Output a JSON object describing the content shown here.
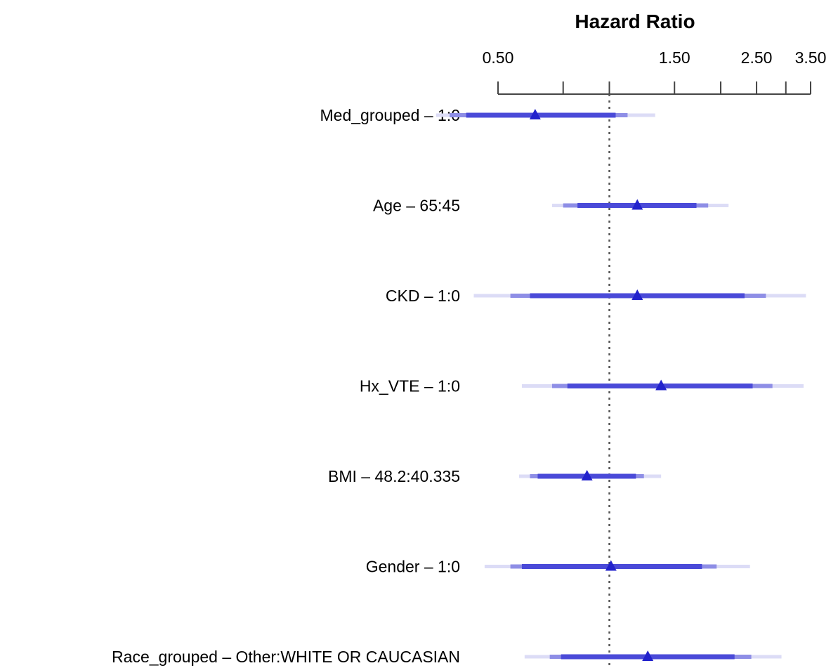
{
  "chart_data": {
    "type": "forest",
    "title": "Hazard Ratio",
    "x_axis": {
      "ticks": [
        0.5,
        0.75,
        1.0,
        1.5,
        2.0,
        2.5,
        3.0,
        3.5
      ],
      "tick_labels": [
        "0.50",
        "",
        "",
        "1.50",
        "",
        "2.50",
        "",
        "3.50"
      ],
      "scale": "log",
      "position": "top"
    },
    "reference_line": 1.0,
    "colors": {
      "mark": "#2222cc",
      "ci_narrow": "#4a4ad8",
      "ci_mid": "#8e8ee6",
      "ci_wide": "#dcdcf6",
      "reference": "#555555",
      "axis": "#444444"
    },
    "rows": [
      {
        "label": "Med_grouped – 1:0",
        "hr": 0.63,
        "ci_inner": [
          0.41,
          1.04
        ],
        "ci_mid": [
          0.37,
          1.12
        ],
        "ci_wide": [
          0.34,
          1.33
        ]
      },
      {
        "label": "Age – 65:45",
        "hr": 1.19,
        "ci_inner": [
          0.82,
          1.72
        ],
        "ci_mid": [
          0.75,
          1.85
        ],
        "ci_wide": [
          0.7,
          2.1
        ]
      },
      {
        "label": "CKD – 1:0",
        "hr": 1.19,
        "ci_inner": [
          0.61,
          2.32
        ],
        "ci_mid": [
          0.54,
          2.65
        ],
        "ci_wide": [
          0.43,
          3.4
        ]
      },
      {
        "label": "Hx_VTE – 1:0",
        "hr": 1.38,
        "ci_inner": [
          0.77,
          2.44
        ],
        "ci_mid": [
          0.7,
          2.76
        ],
        "ci_wide": [
          0.58,
          3.35
        ]
      },
      {
        "label": "BMI – 48.2:40.335",
        "hr": 0.87,
        "ci_inner": [
          0.64,
          1.18
        ],
        "ci_mid": [
          0.61,
          1.24
        ],
        "ci_wide": [
          0.57,
          1.38
        ]
      },
      {
        "label": "Gender – 1:0",
        "hr": 1.01,
        "ci_inner": [
          0.58,
          1.78
        ],
        "ci_mid": [
          0.54,
          1.95
        ],
        "ci_wide": [
          0.46,
          2.4
        ]
      },
      {
        "label": "Race_grouped – Other:WHITE OR CAUCASIAN",
        "hr": 1.27,
        "ci_inner": [
          0.74,
          2.18
        ],
        "ci_mid": [
          0.69,
          2.42
        ],
        "ci_wide": [
          0.59,
          2.92
        ]
      }
    ]
  }
}
